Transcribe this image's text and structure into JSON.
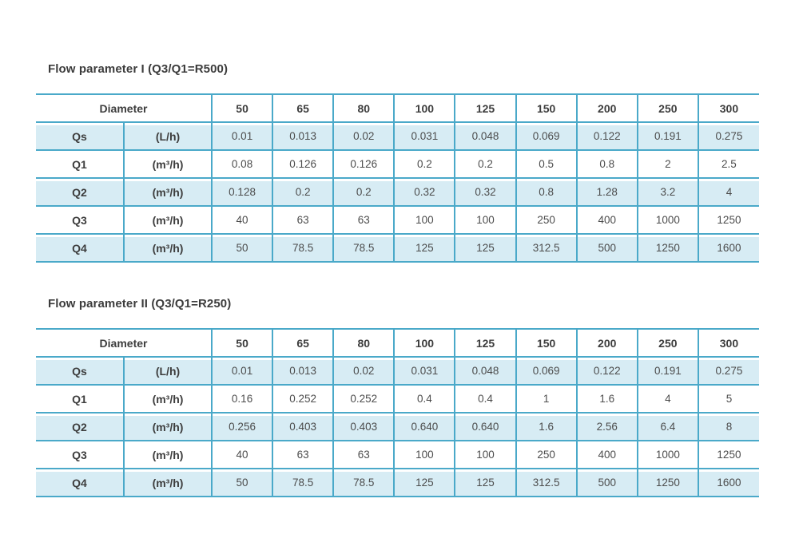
{
  "page": {
    "background": "#ffffff"
  },
  "colors": {
    "table_border": "#4aa9c9",
    "shaded_row_fill": "#d7ecf4",
    "title_text": "#3c3c3c",
    "header_text": "#3d3d3d",
    "value_text": "#4c4c4c"
  },
  "tables": [
    {
      "title": "Flow parameter I (Q3/Q1=R500)",
      "diameter_label": "Diameter",
      "diameters": [
        "50",
        "65",
        "80",
        "100",
        "125",
        "150",
        "200",
        "250",
        "300"
      ],
      "rows": [
        {
          "label": "Qs",
          "unit": "(L/h)",
          "shaded": true,
          "values": [
            "0.01",
            "0.013",
            "0.02",
            "0.031",
            "0.048",
            "0.069",
            "0.122",
            "0.191",
            "0.275"
          ]
        },
        {
          "label": "Q1",
          "unit": "(m³/h)",
          "shaded": false,
          "values": [
            "0.08",
            "0.126",
            "0.126",
            "0.2",
            "0.2",
            "0.5",
            "0.8",
            "2",
            "2.5"
          ]
        },
        {
          "label": "Q2",
          "unit": "(m³/h)",
          "shaded": true,
          "values": [
            "0.128",
            "0.2",
            "0.2",
            "0.32",
            "0.32",
            "0.8",
            "1.28",
            "3.2",
            "4"
          ]
        },
        {
          "label": "Q3",
          "unit": "(m³/h)",
          "shaded": false,
          "values": [
            "40",
            "63",
            "63",
            "100",
            "100",
            "250",
            "400",
            "1000",
            "1250"
          ]
        },
        {
          "label": "Q4",
          "unit": "(m³/h)",
          "shaded": true,
          "values": [
            "50",
            "78.5",
            "78.5",
            "125",
            "125",
            "312.5",
            "500",
            "1250",
            "1600"
          ]
        }
      ]
    },
    {
      "title": "Flow parameter II (Q3/Q1=R250)",
      "diameter_label": "Diameter",
      "diameters": [
        "50",
        "65",
        "80",
        "100",
        "125",
        "150",
        "200",
        "250",
        "300"
      ],
      "rows": [
        {
          "label": "Qs",
          "unit": "(L/h)",
          "shaded": true,
          "values": [
            "0.01",
            "0.013",
            "0.02",
            "0.031",
            "0.048",
            "0.069",
            "0.122",
            "0.191",
            "0.275"
          ]
        },
        {
          "label": "Q1",
          "unit": "(m³/h)",
          "shaded": false,
          "values": [
            "0.16",
            "0.252",
            "0.252",
            "0.4",
            "0.4",
            "1",
            "1.6",
            "4",
            "5"
          ]
        },
        {
          "label": "Q2",
          "unit": "(m³/h)",
          "shaded": true,
          "values": [
            "0.256",
            "0.403",
            "0.403",
            "0.640",
            "0.640",
            "1.6",
            "2.56",
            "6.4",
            "8"
          ]
        },
        {
          "label": "Q3",
          "unit": "(m³/h)",
          "shaded": false,
          "values": [
            "40",
            "63",
            "63",
            "100",
            "100",
            "250",
            "400",
            "1000",
            "1250"
          ]
        },
        {
          "label": "Q4",
          "unit": "(m³/h)",
          "shaded": true,
          "values": [
            "50",
            "78.5",
            "78.5",
            "125",
            "125",
            "312.5",
            "500",
            "1250",
            "1600"
          ]
        }
      ]
    }
  ]
}
